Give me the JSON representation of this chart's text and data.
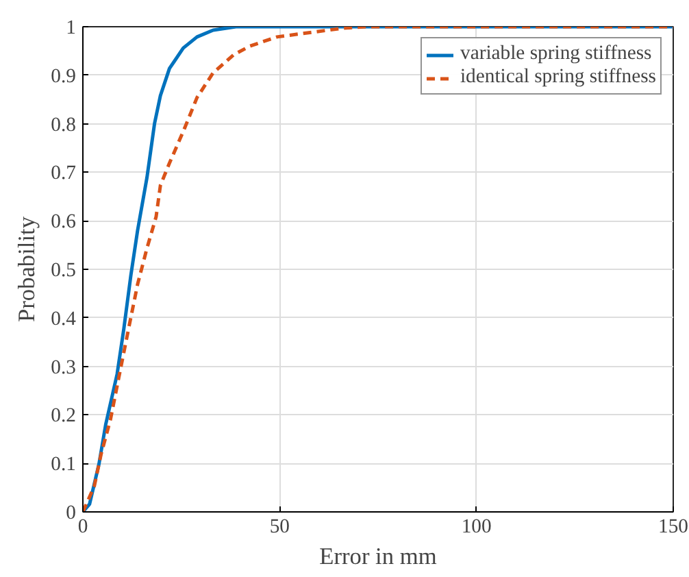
{
  "chart_data": {
    "type": "line",
    "xlabel": "Error in mm",
    "ylabel": "Probability",
    "xlim": [
      0,
      150
    ],
    "ylim": [
      0,
      1
    ],
    "xticks": [
      0,
      50,
      100,
      150
    ],
    "yticks": [
      0,
      0.1,
      0.2,
      0.3,
      0.4,
      0.5,
      0.6,
      0.7,
      0.8,
      0.9,
      1
    ],
    "grid": true,
    "legend": "top right",
    "marker": "none",
    "series": [
      {
        "name": "variable spring stiffness",
        "color": "#0072bd",
        "line_style": "solid",
        "x": [
          0,
          1.7,
          4.1,
          5.8,
          8.7,
          10.4,
          12.2,
          13.9,
          16.3,
          18.2,
          19.7,
          22.0,
          25.5,
          29.0,
          33.1,
          38.9,
          150
        ],
        "values": [
          0,
          0.016,
          0.099,
          0.18,
          0.284,
          0.377,
          0.488,
          0.58,
          0.69,
          0.8,
          0.858,
          0.914,
          0.956,
          0.979,
          0.993,
          1,
          1
        ]
      },
      {
        "name": "identical spring stiffness",
        "color": "#d95319",
        "line_style": "dashed",
        "x": [
          0,
          2.9,
          4.6,
          7.0,
          9.3,
          11.6,
          13.9,
          16.3,
          18.6,
          19.7,
          22.0,
          25.5,
          29.0,
          33.1,
          38.3,
          42.4,
          49.3,
          66.1,
          71.9,
          150
        ],
        "values": [
          0,
          0.053,
          0.118,
          0.19,
          0.284,
          0.377,
          0.469,
          0.544,
          0.608,
          0.673,
          0.719,
          0.784,
          0.854,
          0.905,
          0.942,
          0.96,
          0.979,
          0.997,
          1,
          1
        ]
      }
    ]
  }
}
